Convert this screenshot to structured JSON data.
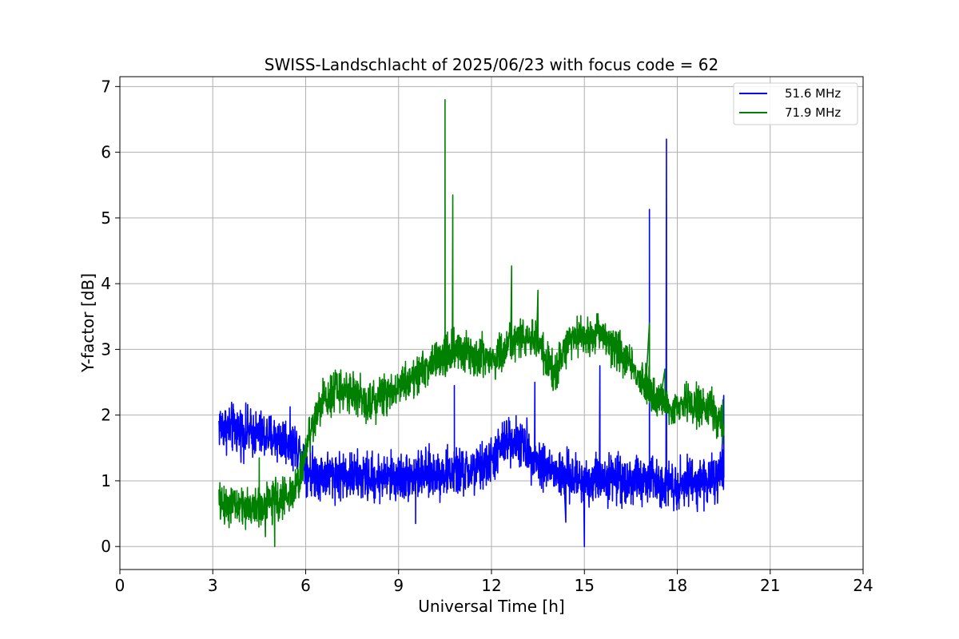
{
  "chart_data": {
    "type": "line",
    "title": "SWISS-Landschlacht of 2025/06/23 with focus code = 62",
    "xlabel": "Universal Time [h]",
    "ylabel": "Y-factor [dB]",
    "xlim": [
      0,
      24
    ],
    "ylim": [
      -0.35,
      7.15
    ],
    "xticks": [
      0,
      3,
      6,
      9,
      12,
      15,
      18,
      21,
      24
    ],
    "yticks": [
      0,
      1,
      2,
      3,
      4,
      5,
      6,
      7
    ],
    "grid": true,
    "legend_position": "top-right",
    "series": [
      {
        "name": "51.6 MHz",
        "color": "#0000ff",
        "noise": 0.18,
        "x": [
          3.2,
          3.5,
          4.0,
          4.5,
          5.0,
          5.5,
          5.8,
          6.1,
          6.5,
          7.0,
          8.0,
          9.0,
          10.0,
          10.5,
          11.0,
          11.5,
          12.0,
          12.3,
          12.6,
          12.9,
          13.2,
          13.5,
          13.8,
          14.1,
          14.5,
          15.0,
          15.5,
          16.0,
          16.5,
          17.0,
          17.5,
          18.0,
          18.5,
          19.0,
          19.5
        ],
        "y": [
          1.85,
          1.8,
          1.75,
          1.7,
          1.65,
          1.6,
          1.45,
          1.15,
          1.1,
          1.1,
          1.05,
          1.05,
          1.1,
          1.12,
          1.12,
          1.15,
          1.3,
          1.5,
          1.65,
          1.6,
          1.45,
          1.3,
          1.2,
          1.1,
          1.05,
          1.0,
          1.05,
          1.05,
          1.0,
          1.0,
          1.0,
          0.95,
          1.0,
          1.0,
          1.05
        ],
        "spikes": [
          [
            17.1,
            5.13
          ],
          [
            17.65,
            6.2
          ],
          [
            10.8,
            2.45
          ],
          [
            15.5,
            2.75
          ],
          [
            13.4,
            2.5
          ],
          [
            19.5,
            2.3
          ],
          [
            15.0,
            0.0
          ],
          [
            9.55,
            0.35
          ],
          [
            14.4,
            0.37
          ]
        ]
      },
      {
        "name": "71.9 MHz",
        "color": "#008000",
        "noise": 0.15,
        "x": [
          3.2,
          3.5,
          4.0,
          4.5,
          5.0,
          5.5,
          5.8,
          6.1,
          6.5,
          7.0,
          7.5,
          8.0,
          8.5,
          9.0,
          9.5,
          10.0,
          10.5,
          11.0,
          11.5,
          12.0,
          12.5,
          13.0,
          13.5,
          14.0,
          14.5,
          15.0,
          15.5,
          16.0,
          16.5,
          17.0,
          17.5,
          18.0,
          18.5,
          19.0,
          19.5
        ],
        "y": [
          0.65,
          0.65,
          0.6,
          0.6,
          0.7,
          0.8,
          1.0,
          1.7,
          2.2,
          2.4,
          2.35,
          2.2,
          2.3,
          2.45,
          2.6,
          2.75,
          2.9,
          3.0,
          2.9,
          2.85,
          3.0,
          3.2,
          3.1,
          2.6,
          3.15,
          3.2,
          3.25,
          3.05,
          2.8,
          2.4,
          2.2,
          2.1,
          2.2,
          2.1,
          1.9
        ],
        "spikes": [
          [
            10.5,
            6.8
          ],
          [
            10.75,
            5.35
          ],
          [
            12.65,
            4.27
          ],
          [
            13.5,
            3.9
          ],
          [
            4.5,
            1.35
          ],
          [
            5.0,
            0.0
          ],
          [
            4.7,
            0.15
          ],
          [
            17.1,
            3.4
          ],
          [
            17.6,
            2.7
          ]
        ]
      }
    ]
  }
}
